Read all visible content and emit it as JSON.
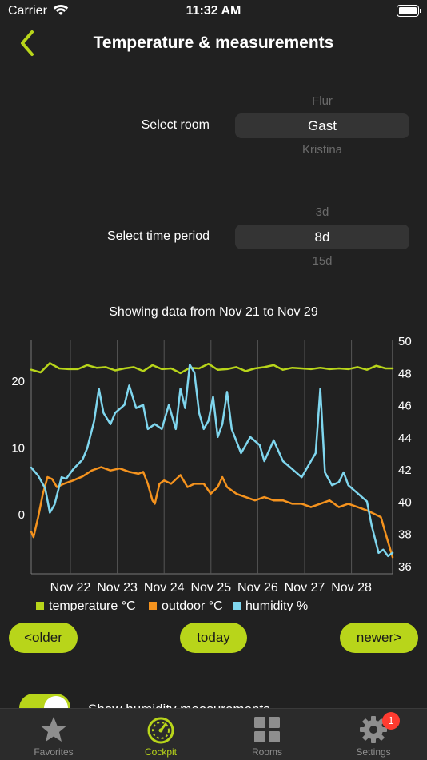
{
  "status_bar": {
    "carrier": "Carrier",
    "time": "11:32 AM"
  },
  "nav": {
    "title": "Temperature & measurements",
    "back_icon": "chevron-left-icon"
  },
  "room_picker": {
    "label": "Select room",
    "options": [
      "Flur",
      "Gast",
      "Kristina"
    ],
    "selected": "Gast"
  },
  "period_picker": {
    "label": "Select time period",
    "options": [
      "3d",
      "8d",
      "15d"
    ],
    "selected": "8d"
  },
  "chart_caption": "Showing data from Nov 21 to Nov 29",
  "chart_data": {
    "type": "line",
    "x_categories": [
      "Nov 22",
      "Nov 23",
      "Nov 24",
      "Nov 25",
      "Nov 26",
      "Nov 27",
      "Nov 28"
    ],
    "x_range_days": [
      0,
      7.75
    ],
    "y_left": {
      "ticks": [
        "20",
        "10",
        "0"
      ],
      "range": [
        -9,
        26
      ]
    },
    "y_right": {
      "ticks": [
        "50",
        "48",
        "46",
        "44",
        "42",
        "40",
        "38",
        "36"
      ],
      "range": [
        35.5,
        50
      ]
    },
    "grid": "vertical",
    "legend_position": "bottom",
    "series": [
      {
        "name": "temperature °C",
        "color": "#b8d51a",
        "axis": "left",
        "points": [
          [
            0,
            21.6
          ],
          [
            0.2,
            21.2
          ],
          [
            0.4,
            22.6
          ],
          [
            0.6,
            21.8
          ],
          [
            0.8,
            21.7
          ],
          [
            1.0,
            21.7
          ],
          [
            1.2,
            22.3
          ],
          [
            1.4,
            21.9
          ],
          [
            1.6,
            22.0
          ],
          [
            1.8,
            21.5
          ],
          [
            2.0,
            21.8
          ],
          [
            2.2,
            22.0
          ],
          [
            2.4,
            21.4
          ],
          [
            2.6,
            22.3
          ],
          [
            2.8,
            21.7
          ],
          [
            3.0,
            21.8
          ],
          [
            3.2,
            21.1
          ],
          [
            3.4,
            21.9
          ],
          [
            3.6,
            21.8
          ],
          [
            3.8,
            22.5
          ],
          [
            4.0,
            21.6
          ],
          [
            4.2,
            21.7
          ],
          [
            4.4,
            22.0
          ],
          [
            4.6,
            21.4
          ],
          [
            4.8,
            21.8
          ],
          [
            5.0,
            22.0
          ],
          [
            5.2,
            22.3
          ],
          [
            5.4,
            21.6
          ],
          [
            5.6,
            21.9
          ],
          [
            5.8,
            21.8
          ],
          [
            6.0,
            21.7
          ],
          [
            6.2,
            21.9
          ],
          [
            6.4,
            21.7
          ],
          [
            6.6,
            21.8
          ],
          [
            6.8,
            21.7
          ],
          [
            7.0,
            22.0
          ],
          [
            7.2,
            21.6
          ],
          [
            7.4,
            22.2
          ],
          [
            7.6,
            21.8
          ],
          [
            7.75,
            21.8
          ]
        ]
      },
      {
        "name": "outdoor °C",
        "color": "#f5931e",
        "axis": "left",
        "points": [
          [
            0,
            -2.7
          ],
          [
            0.05,
            -3.5
          ],
          [
            0.15,
            -0.5
          ],
          [
            0.25,
            3.0
          ],
          [
            0.35,
            5.5
          ],
          [
            0.45,
            5.2
          ],
          [
            0.55,
            4.0
          ],
          [
            0.7,
            4.5
          ],
          [
            0.9,
            5.0
          ],
          [
            1.1,
            5.6
          ],
          [
            1.3,
            6.5
          ],
          [
            1.5,
            7.0
          ],
          [
            1.7,
            6.5
          ],
          [
            1.9,
            6.8
          ],
          [
            2.1,
            6.3
          ],
          [
            2.3,
            6.0
          ],
          [
            2.4,
            6.3
          ],
          [
            2.5,
            4.5
          ],
          [
            2.6,
            2.0
          ],
          [
            2.65,
            1.5
          ],
          [
            2.75,
            4.5
          ],
          [
            2.85,
            5.0
          ],
          [
            3.0,
            4.5
          ],
          [
            3.2,
            5.8
          ],
          [
            3.35,
            4.0
          ],
          [
            3.5,
            4.5
          ],
          [
            3.7,
            4.5
          ],
          [
            3.85,
            3.0
          ],
          [
            4.0,
            4.0
          ],
          [
            4.1,
            5.5
          ],
          [
            4.2,
            4.0
          ],
          [
            4.4,
            3.0
          ],
          [
            4.6,
            2.5
          ],
          [
            4.8,
            2.0
          ],
          [
            5.0,
            2.5
          ],
          [
            5.2,
            2.0
          ],
          [
            5.4,
            2.0
          ],
          [
            5.6,
            1.5
          ],
          [
            5.8,
            1.5
          ],
          [
            6.0,
            1.0
          ],
          [
            6.2,
            1.5
          ],
          [
            6.4,
            2.0
          ],
          [
            6.6,
            1.0
          ],
          [
            6.8,
            1.5
          ],
          [
            7.0,
            1.0
          ],
          [
            7.2,
            0.5
          ],
          [
            7.35,
            0
          ],
          [
            7.5,
            -0.5
          ],
          [
            7.6,
            -3.0
          ],
          [
            7.75,
            -6.5
          ]
        ]
      },
      {
        "name": "humidity %",
        "color": "#7fd6ee",
        "axis": "right",
        "points": [
          [
            0,
            42.1
          ],
          [
            0.15,
            41.6
          ],
          [
            0.3,
            40.8
          ],
          [
            0.4,
            39.3
          ],
          [
            0.5,
            39.8
          ],
          [
            0.65,
            41.5
          ],
          [
            0.75,
            41.4
          ],
          [
            0.9,
            42.0
          ],
          [
            1.1,
            42.6
          ],
          [
            1.2,
            43.3
          ],
          [
            1.35,
            45.0
          ],
          [
            1.45,
            47.0
          ],
          [
            1.55,
            45.5
          ],
          [
            1.7,
            44.8
          ],
          [
            1.8,
            45.5
          ],
          [
            2.0,
            46.0
          ],
          [
            2.1,
            47.2
          ],
          [
            2.25,
            45.8
          ],
          [
            2.4,
            46.0
          ],
          [
            2.5,
            44.5
          ],
          [
            2.65,
            44.8
          ],
          [
            2.8,
            44.5
          ],
          [
            2.95,
            46.0
          ],
          [
            3.1,
            44.5
          ],
          [
            3.2,
            47.0
          ],
          [
            3.3,
            45.8
          ],
          [
            3.4,
            48.5
          ],
          [
            3.5,
            48.0
          ],
          [
            3.6,
            45.5
          ],
          [
            3.7,
            44.5
          ],
          [
            3.8,
            45.0
          ],
          [
            3.9,
            46.5
          ],
          [
            4.0,
            44.0
          ],
          [
            4.1,
            44.8
          ],
          [
            4.2,
            46.8
          ],
          [
            4.3,
            44.5
          ],
          [
            4.5,
            43.0
          ],
          [
            4.7,
            44.0
          ],
          [
            4.9,
            43.5
          ],
          [
            5.0,
            42.5
          ],
          [
            5.2,
            43.8
          ],
          [
            5.4,
            42.5
          ],
          [
            5.6,
            42.0
          ],
          [
            5.8,
            41.5
          ],
          [
            6.0,
            42.5
          ],
          [
            6.1,
            43.0
          ],
          [
            6.2,
            47.0
          ],
          [
            6.3,
            41.8
          ],
          [
            6.45,
            41.0
          ],
          [
            6.6,
            41.2
          ],
          [
            6.7,
            41.8
          ],
          [
            6.8,
            41.0
          ],
          [
            7.0,
            40.5
          ],
          [
            7.2,
            40.0
          ],
          [
            7.3,
            38.5
          ],
          [
            7.45,
            36.8
          ],
          [
            7.55,
            37.0
          ],
          [
            7.65,
            36.6
          ],
          [
            7.75,
            36.8
          ]
        ]
      }
    ]
  },
  "buttons": {
    "older": "<older",
    "today": "today",
    "newer": "newer>"
  },
  "humidity_toggle": {
    "label": "Show humidity measurements",
    "on": true
  },
  "tabbar": {
    "items": [
      {
        "label": "Favorites",
        "icon": "star-icon"
      },
      {
        "label": "Cockpit",
        "icon": "speedometer-icon"
      },
      {
        "label": "Rooms",
        "icon": "grid-icon"
      },
      {
        "label": "Settings",
        "icon": "gear-icon"
      }
    ],
    "active_index": 1,
    "settings_badge": "1"
  }
}
